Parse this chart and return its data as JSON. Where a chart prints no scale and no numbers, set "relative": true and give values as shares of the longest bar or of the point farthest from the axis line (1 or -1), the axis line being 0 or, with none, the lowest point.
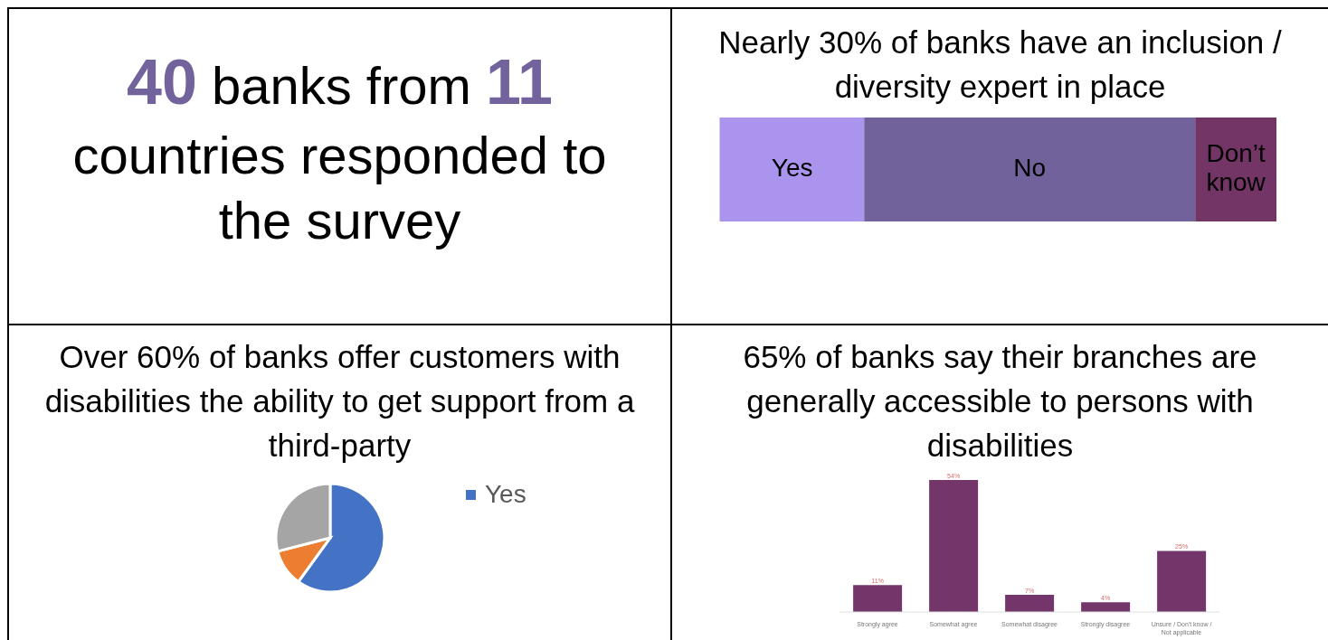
{
  "chart_data": [
    {
      "type": "other",
      "title": "40 banks from 11 countries responded to the survey",
      "color": "#73639c"
    },
    {
      "type": "bar",
      "title": "Nearly 30% of banks have an inclusion / diversity expert in place",
      "orientation": "horizontal",
      "stacked": true,
      "relative": true,
      "categories": [
        null
      ],
      "series": [
        {
          "name": "Yes",
          "color": "#ab94ee",
          "values": [
            0.259
          ]
        },
        {
          "name": "No",
          "color": "#71629b",
          "values": [
            0.595
          ]
        },
        {
          "name": "Don’t know",
          "color": "#733566",
          "values": [
            0.146
          ]
        }
      ]
    },
    {
      "type": "pie",
      "title": "Over 60% of banks offer customers with disabilities the ability to get support from a third-party",
      "categories": [
        "Yes",
        null,
        null
      ],
      "values": [
        60,
        11,
        29
      ],
      "colors": [
        "#4472c4",
        "#ed7d31",
        "#a5a5a5"
      ],
      "legend": "right"
    },
    {
      "type": "bar",
      "title": "65% of banks say their branches are generally accessible to persons with disabilities",
      "categories": [
        "Strongly agree",
        "Somewhat agree",
        "Somewhat disagree",
        "Strongly disagree",
        "Unsure / Don't know / Not applicable"
      ],
      "values": [
        11,
        54,
        7,
        4,
        25
      ],
      "value_labels": [
        "11%",
        "54%",
        "7%",
        "4%",
        "25%"
      ],
      "color": "#73356a"
    }
  ]
}
